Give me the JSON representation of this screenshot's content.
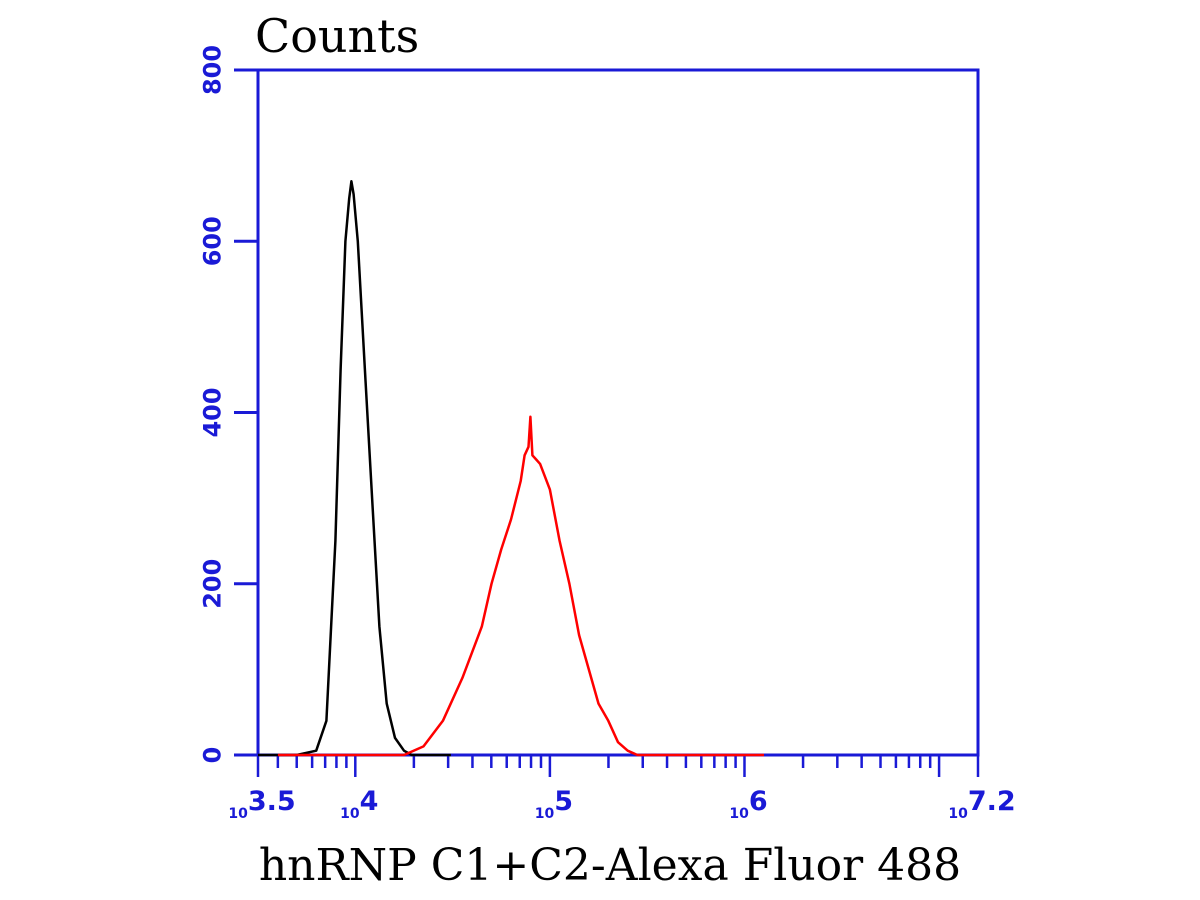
{
  "chart_data": {
    "type": "line",
    "ylabel": "Counts",
    "xlabel": "hnRNP C1+C2-Alexa Fluor 488",
    "x_scale": "log",
    "xlim": [
      3162.28,
      15848931.92
    ],
    "ylim": [
      0,
      800
    ],
    "yticks": [
      {
        "value": 0,
        "label": "0"
      },
      {
        "value": 200,
        "label": "200"
      },
      {
        "value": 400,
        "label": "400"
      },
      {
        "value": 600,
        "label": "600"
      },
      {
        "value": 800,
        "label": "800"
      }
    ],
    "xticks": [
      {
        "value": 3162.28,
        "base": "10",
        "exp": "3.5"
      },
      {
        "value": 10000,
        "base": "10",
        "exp": "4"
      },
      {
        "value": 100000,
        "base": "10",
        "exp": "5"
      },
      {
        "value": 1000000,
        "base": "10",
        "exp": "6"
      },
      {
        "value": 15848931.92,
        "base": "10",
        "exp": "7.2"
      }
    ],
    "grid": false,
    "series": [
      {
        "color": "#000000",
        "points": [
          [
            3162,
            0
          ],
          [
            5000,
            0
          ],
          [
            6300,
            5
          ],
          [
            7100,
            40
          ],
          [
            7900,
            250
          ],
          [
            8400,
            450
          ],
          [
            8900,
            600
          ],
          [
            9300,
            650
          ],
          [
            9550,
            670
          ],
          [
            9800,
            655
          ],
          [
            10300,
            600
          ],
          [
            11200,
            450
          ],
          [
            12200,
            300
          ],
          [
            13300,
            150
          ],
          [
            14500,
            60
          ],
          [
            16000,
            20
          ],
          [
            17800,
            5
          ],
          [
            19500,
            0
          ],
          [
            31000,
            0
          ]
        ]
      },
      {
        "color": "#ff0000",
        "points": [
          [
            4000,
            0
          ],
          [
            17800,
            0
          ],
          [
            22400,
            10
          ],
          [
            28200,
            40
          ],
          [
            35500,
            90
          ],
          [
            44700,
            150
          ],
          [
            50100,
            200
          ],
          [
            56200,
            240
          ],
          [
            63100,
            275
          ],
          [
            70800,
            320
          ],
          [
            74100,
            350
          ],
          [
            77600,
            360
          ],
          [
            79400,
            395
          ],
          [
            81300,
            350
          ],
          [
            85100,
            345
          ],
          [
            89100,
            340
          ],
          [
            100000,
            310
          ],
          [
            112200,
            250
          ],
          [
            125900,
            200
          ],
          [
            141300,
            140
          ],
          [
            158500,
            100
          ],
          [
            177800,
            60
          ],
          [
            199500,
            40
          ],
          [
            223900,
            15
          ],
          [
            251200,
            5
          ],
          [
            281800,
            0
          ],
          [
            1260000,
            0
          ]
        ]
      }
    ]
  }
}
